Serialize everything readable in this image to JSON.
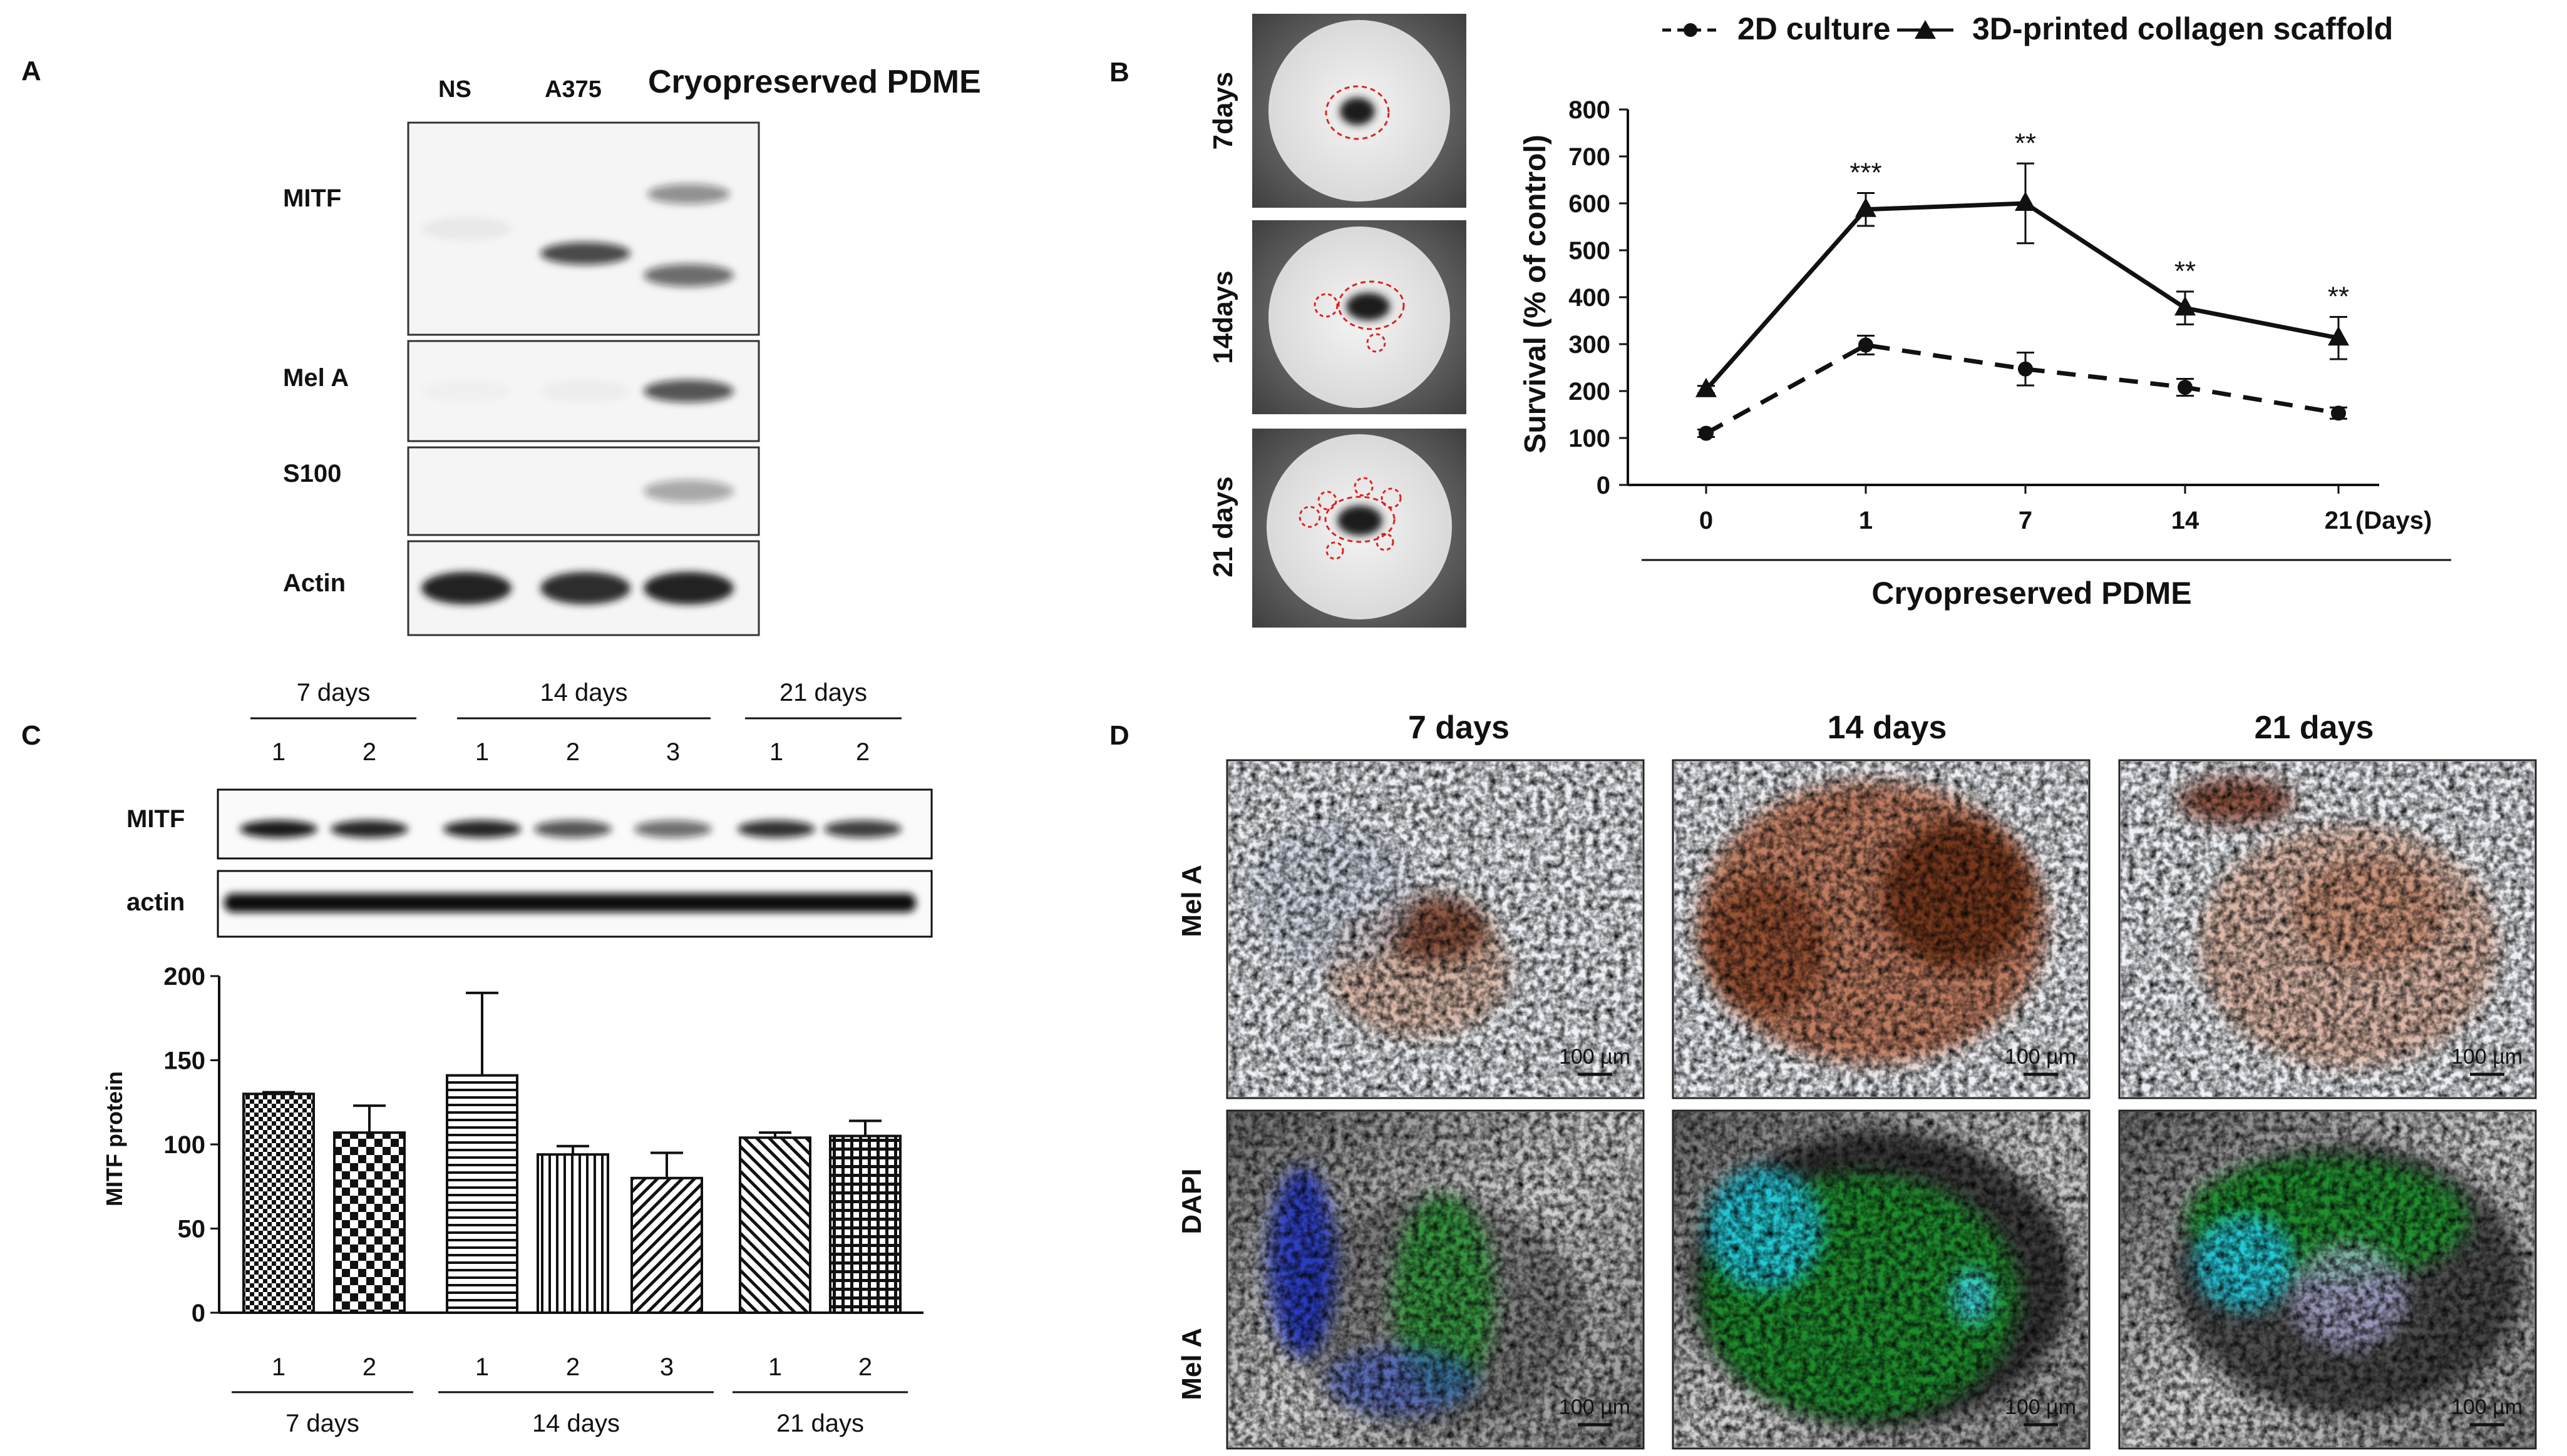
{
  "panels": {
    "a": {
      "letter": "A",
      "lanes": [
        "NS",
        "A375",
        "Cryopreserved PDME"
      ],
      "rows": [
        {
          "label": "MITF",
          "bands": [
            0.05,
            0.75,
            0.6
          ]
        },
        {
          "label": "Mel A",
          "bands": [
            0.02,
            0.03,
            0.7
          ]
        },
        {
          "label": "S100",
          "bands": [
            0.0,
            0.0,
            0.35
          ]
        },
        {
          "label": "Actin",
          "bands": [
            0.95,
            0.9,
            0.95
          ]
        }
      ]
    },
    "b": {
      "letter": "B",
      "photo_labels": [
        "7days",
        "14days",
        "21 days"
      ]
    },
    "c": {
      "letter": "C",
      "blot_groups": [
        {
          "label": "7 days",
          "lanes": [
            "1",
            "2"
          ]
        },
        {
          "label": "14 days",
          "lanes": [
            "1",
            "2",
            "3"
          ]
        },
        {
          "label": "21 days",
          "lanes": [
            "1",
            "2"
          ]
        }
      ],
      "blot_rows": [
        "MITF",
        "actin"
      ]
    },
    "d": {
      "letter": "D",
      "columns": [
        "7 days",
        "14 days",
        "21 days"
      ],
      "row1_label": "Mel A",
      "row2_labels": [
        "DAPI",
        "Mel A"
      ],
      "scale_bar": "100 µm"
    }
  },
  "chart_data": [
    {
      "type": "line",
      "panel": "B",
      "categories": [
        "0",
        "1",
        "7",
        "14",
        "21"
      ],
      "x_unit": "(Days)",
      "series": [
        {
          "name": "2D culture",
          "style": "dashed",
          "marker": "circle",
          "values": [
            110,
            298,
            247,
            208,
            153
          ],
          "errors": [
            8,
            20,
            35,
            18,
            12
          ]
        },
        {
          "name": "3D-printed collagen scaffold",
          "style": "solid",
          "marker": "triangle",
          "values": [
            203,
            587,
            600,
            377,
            313
          ],
          "errors": [
            8,
            35,
            85,
            35,
            45
          ]
        }
      ],
      "significance": [
        "",
        "***",
        "**",
        "**",
        "**"
      ],
      "ylabel": "Survival (% of control)",
      "xlabel": "Cryopreserved PDME",
      "ylim": [
        0,
        800
      ],
      "yticks": [
        0,
        100,
        200,
        300,
        400,
        500,
        600,
        700,
        800
      ],
      "legend": "top"
    },
    {
      "type": "bar",
      "panel": "C",
      "categories": [
        "1",
        "2",
        "1",
        "2",
        "3",
        "1",
        "2"
      ],
      "groups": [
        {
          "label": "7 days",
          "count": 2
        },
        {
          "label": "14 days",
          "count": 3
        },
        {
          "label": "21 days",
          "count": 2
        }
      ],
      "values": [
        130,
        107,
        141,
        94,
        80,
        104,
        105
      ],
      "errors": [
        1,
        16,
        49,
        5,
        15,
        3,
        9
      ],
      "patterns": [
        "checker-small",
        "checker",
        "hlines",
        "vlines",
        "diag-fwd",
        "diag-back",
        "grid"
      ],
      "ylabel": "MITF protein",
      "ylim": [
        0,
        200
      ],
      "yticks": [
        0,
        50,
        100,
        150,
        200
      ]
    }
  ]
}
